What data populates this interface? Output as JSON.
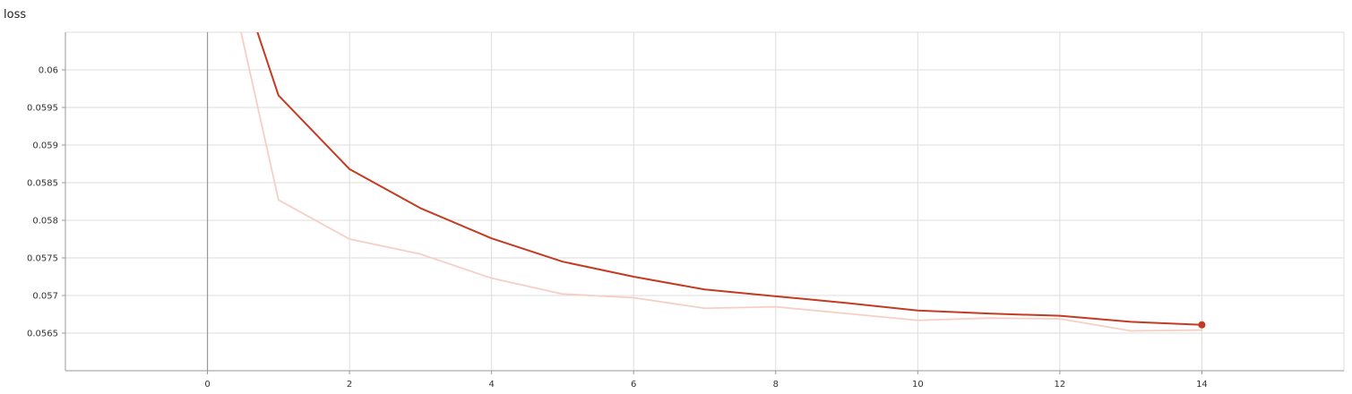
{
  "chart_data": {
    "type": "line",
    "title": "loss",
    "xlabel": "",
    "ylabel": "",
    "xlim": [
      -2,
      16
    ],
    "ylim": [
      0.056,
      0.0605
    ],
    "x_ticks": [
      0,
      2,
      4,
      6,
      8,
      10,
      12,
      14
    ],
    "y_ticks": [
      0.0565,
      0.057,
      0.0575,
      0.058,
      0.0585,
      0.059,
      0.0595,
      0.06
    ],
    "y_tick_labels": [
      "0.0565",
      "0.057",
      "0.0575",
      "0.058",
      "0.0585",
      "0.059",
      "0.0595",
      "0.06"
    ],
    "grid": true,
    "legend": "none",
    "series": [
      {
        "role": "raw",
        "color": "#f5cfc4",
        "x": [
          0,
          1,
          2,
          3,
          4,
          5,
          6,
          7,
          8,
          9,
          10,
          11,
          12,
          13,
          14
        ],
        "values": [
          0.0625,
          0.05827,
          0.05775,
          0.05755,
          0.05723,
          0.05702,
          0.05697,
          0.05683,
          0.05685,
          0.05676,
          0.05667,
          0.0567,
          0.05669,
          0.05653,
          0.05654
        ]
      },
      {
        "role": "smoothed",
        "color": "#c23b22",
        "x": [
          0,
          1,
          2,
          3,
          4,
          5,
          6,
          7,
          8,
          9,
          10,
          11,
          12,
          13,
          14
        ],
        "values": [
          0.0625,
          0.05966,
          0.05868,
          0.05816,
          0.05776,
          0.05745,
          0.05725,
          0.05708,
          0.05699,
          0.0569,
          0.0568,
          0.05676,
          0.05673,
          0.05665,
          0.05661
        ]
      }
    ],
    "end_marker": {
      "x": 14,
      "value": 0.05661,
      "color": "#c23b22"
    }
  }
}
